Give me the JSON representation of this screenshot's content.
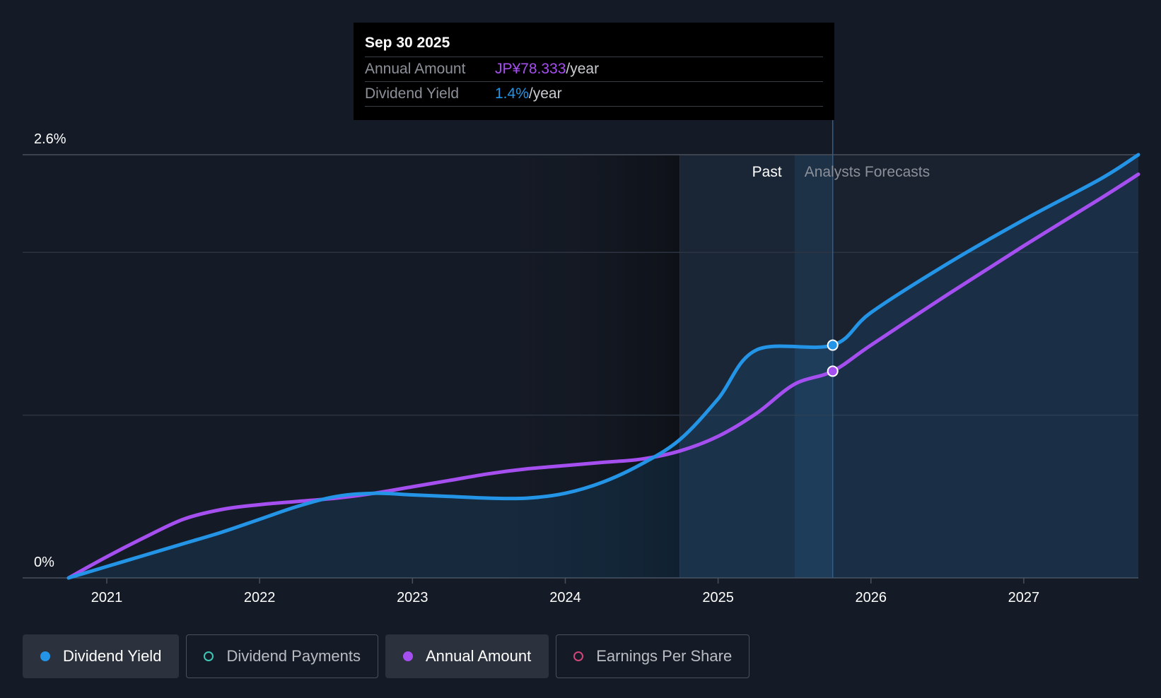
{
  "tooltip": {
    "date": "Sep 30 2025",
    "rows": [
      {
        "label": "Annual Amount",
        "value": "JP¥78.333",
        "suffix": "/year"
      },
      {
        "label": "Dividend Yield",
        "value": "1.4%",
        "suffix": "/year"
      }
    ]
  },
  "region_labels": {
    "past": "Past",
    "forecast": "Analysts Forecasts"
  },
  "legend": [
    {
      "label": "Dividend Yield",
      "color": "#2394e6",
      "active": true,
      "filled": true
    },
    {
      "label": "Dividend Payments",
      "color": "#3ec7b5",
      "active": false,
      "filled": false
    },
    {
      "label": "Annual Amount",
      "color": "#a64ff0",
      "active": true,
      "filled": true
    },
    {
      "label": "Earnings Per Share",
      "color": "#d1467a",
      "active": false,
      "filled": false
    }
  ],
  "chart_data": {
    "type": "line",
    "ylim": [
      0,
      2.6
    ],
    "y_tick_labels": [
      {
        "value": 2.6,
        "label": "2.6%"
      },
      {
        "value": 0,
        "label": "0%"
      }
    ],
    "gridlines": [
      2.6,
      2.0,
      1.0,
      0
    ],
    "xlim": [
      2020.75,
      2027.75
    ],
    "x_ticks": [
      2021,
      2022,
      2023,
      2024,
      2025,
      2026,
      2027
    ],
    "x_tick_labels": [
      "2021",
      "2022",
      "2023",
      "2024",
      "2025",
      "2026",
      "2027"
    ],
    "past_region_start": 2024.75,
    "forecast_start": 2025.75,
    "hover_x": 2025.75,
    "series": [
      {
        "name": "Dividend Yield",
        "color": "#2394e6",
        "x": [
          2020.75,
          2021.0,
          2021.25,
          2021.5,
          2021.75,
          2022.0,
          2022.25,
          2022.5,
          2022.75,
          2023.0,
          2023.25,
          2023.5,
          2023.75,
          2024.0,
          2024.25,
          2024.5,
          2024.75,
          2025.0,
          2025.25,
          2025.5,
          2025.75,
          2026.0,
          2026.5,
          2027.0,
          2027.5,
          2027.75
        ],
        "y": [
          0.0,
          0.07,
          0.14,
          0.21,
          0.28,
          0.36,
          0.44,
          0.5,
          0.52,
          0.51,
          0.5,
          0.49,
          0.49,
          0.52,
          0.59,
          0.7,
          0.85,
          1.1,
          1.4,
          1.7,
          1.43,
          1.63,
          1.93,
          2.2,
          2.45,
          2.6
        ]
      },
      {
        "name": "Annual Amount",
        "color": "#a64ff0",
        "x": [
          2020.75,
          2021.0,
          2021.25,
          2021.5,
          2021.75,
          2022.0,
          2022.25,
          2022.5,
          2022.75,
          2023.0,
          2023.25,
          2023.5,
          2023.75,
          2024.0,
          2024.25,
          2024.5,
          2024.75,
          2025.0,
          2025.25,
          2025.5,
          2025.75,
          2026.0,
          2026.5,
          2027.0,
          2027.5,
          2027.75
        ],
        "y": [
          0.0,
          0.13,
          0.25,
          0.36,
          0.42,
          0.45,
          0.47,
          0.49,
          0.52,
          0.56,
          0.6,
          0.64,
          0.67,
          0.69,
          0.71,
          0.73,
          0.78,
          0.87,
          1.01,
          1.19,
          1.27,
          1.43,
          1.74,
          2.04,
          2.33,
          2.48
        ]
      }
    ]
  }
}
